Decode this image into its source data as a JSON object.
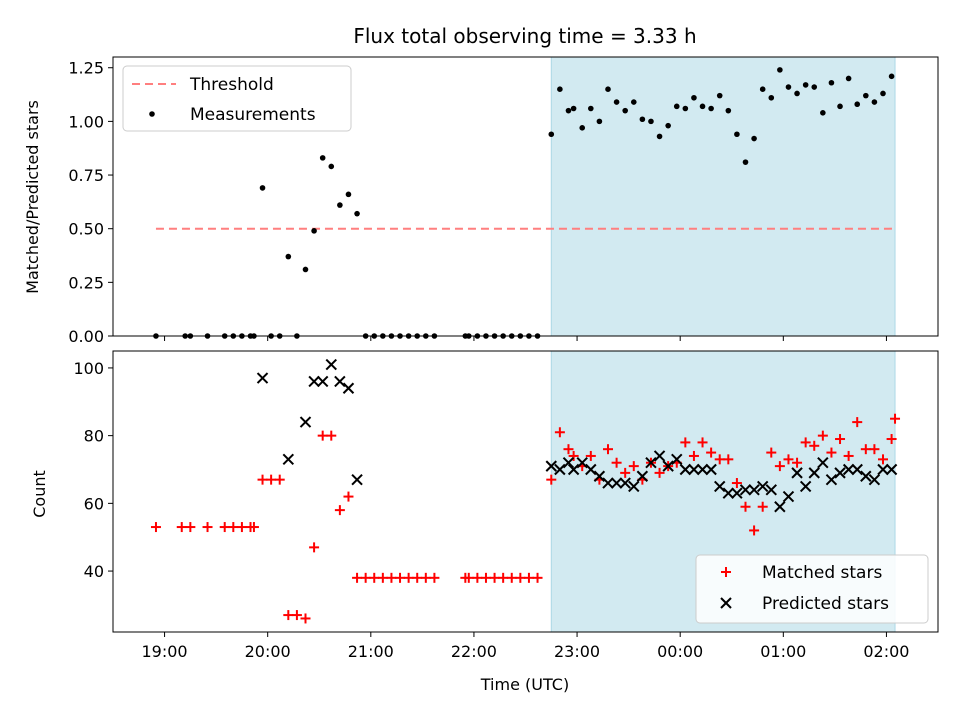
{
  "title": "Flux total observing time = 3.33 h",
  "colors": {
    "threshold": "#ff7f7f",
    "measurement": "#000000",
    "matched": "#ff0000",
    "predicted": "#000000",
    "shade": "#add8e6"
  },
  "chart_data": [
    {
      "type": "scatter",
      "panel": "top",
      "ylabel": "Matched/Predicted stars",
      "ylim": [
        0,
        1.3
      ],
      "yticks": [
        "0.00",
        "0.25",
        "0.50",
        "0.75",
        "1.00",
        "1.25"
      ],
      "shaded_region": [
        "22:45",
        "02:05"
      ],
      "legend": {
        "position": "upper-left",
        "entries": [
          "Threshold",
          "Measurements"
        ]
      },
      "threshold": {
        "name": "Threshold",
        "value": 0.5,
        "x_range": [
          "18:55",
          "02:05"
        ]
      },
      "measurements": {
        "name": "Measurements",
        "points": [
          [
            "18:55",
            0.0
          ],
          [
            "19:12",
            0.0
          ],
          [
            "19:15",
            0.0
          ],
          [
            "19:25",
            0.0
          ],
          [
            "19:35",
            0.0
          ],
          [
            "19:40",
            0.0
          ],
          [
            "19:45",
            0.0
          ],
          [
            "19:50",
            0.0
          ],
          [
            "19:52",
            0.0
          ],
          [
            "19:57",
            0.69
          ],
          [
            "20:02",
            0.0
          ],
          [
            "20:07",
            0.0
          ],
          [
            "20:12",
            0.37
          ],
          [
            "20:17",
            0.0
          ],
          [
            "20:22",
            0.31
          ],
          [
            "20:27",
            0.49
          ],
          [
            "20:32",
            0.83
          ],
          [
            "20:37",
            0.79
          ],
          [
            "20:42",
            0.61
          ],
          [
            "20:47",
            0.66
          ],
          [
            "20:52",
            0.57
          ],
          [
            "20:57",
            0.0
          ],
          [
            "21:02",
            0.0
          ],
          [
            "21:07",
            0.0
          ],
          [
            "21:12",
            0.0
          ],
          [
            "21:17",
            0.0
          ],
          [
            "21:22",
            0.0
          ],
          [
            "21:27",
            0.0
          ],
          [
            "21:32",
            0.0
          ],
          [
            "21:37",
            0.0
          ],
          [
            "21:55",
            0.0
          ],
          [
            "21:57",
            0.0
          ],
          [
            "22:02",
            0.0
          ],
          [
            "22:07",
            0.0
          ],
          [
            "22:12",
            0.0
          ],
          [
            "22:17",
            0.0
          ],
          [
            "22:22",
            0.0
          ],
          [
            "22:27",
            0.0
          ],
          [
            "22:32",
            0.0
          ],
          [
            "22:37",
            0.0
          ],
          [
            "22:45",
            0.94
          ],
          [
            "22:50",
            1.15
          ],
          [
            "22:55",
            1.05
          ],
          [
            "22:58",
            1.06
          ],
          [
            "23:03",
            0.97
          ],
          [
            "23:08",
            1.06
          ],
          [
            "23:13",
            1.0
          ],
          [
            "23:18",
            1.15
          ],
          [
            "23:23",
            1.09
          ],
          [
            "23:28",
            1.05
          ],
          [
            "23:33",
            1.09
          ],
          [
            "23:38",
            1.01
          ],
          [
            "23:43",
            1.0
          ],
          [
            "23:48",
            0.93
          ],
          [
            "23:53",
            0.98
          ],
          [
            "23:58",
            1.07
          ],
          [
            "00:03",
            1.06
          ],
          [
            "00:08",
            1.11
          ],
          [
            "00:13",
            1.07
          ],
          [
            "00:18",
            1.06
          ],
          [
            "00:23",
            1.12
          ],
          [
            "00:28",
            1.05
          ],
          [
            "00:33",
            0.94
          ],
          [
            "00:38",
            0.81
          ],
          [
            "00:43",
            0.92
          ],
          [
            "00:48",
            1.15
          ],
          [
            "00:53",
            1.11
          ],
          [
            "00:58",
            1.24
          ],
          [
            "01:03",
            1.16
          ],
          [
            "01:08",
            1.13
          ],
          [
            "01:13",
            1.17
          ],
          [
            "01:18",
            1.16
          ],
          [
            "01:23",
            1.04
          ],
          [
            "01:28",
            1.18
          ],
          [
            "01:33",
            1.07
          ],
          [
            "01:38",
            1.2
          ],
          [
            "01:43",
            1.08
          ],
          [
            "01:48",
            1.12
          ],
          [
            "01:53",
            1.09
          ],
          [
            "01:58",
            1.13
          ],
          [
            "02:03",
            1.21
          ]
        ]
      }
    },
    {
      "type": "scatter",
      "panel": "bottom",
      "ylabel": "Count",
      "xlabel": "Time (UTC)",
      "ylim": [
        22,
        105
      ],
      "yticks": [
        "40",
        "60",
        "80",
        "100"
      ],
      "xlim": [
        "18:30",
        "02:30"
      ],
      "xticks": [
        "19:00",
        "20:00",
        "21:00",
        "22:00",
        "23:00",
        "00:00",
        "01:00",
        "02:00"
      ],
      "shaded_region": [
        "22:45",
        "02:05"
      ],
      "legend": {
        "position": "lower-right",
        "entries": [
          "Matched stars",
          "Predicted stars"
        ]
      },
      "series": [
        {
          "name": "Matched stars",
          "marker": "+",
          "points": [
            [
              "18:55",
              53
            ],
            [
              "19:10",
              53
            ],
            [
              "19:15",
              53
            ],
            [
              "19:25",
              53
            ],
            [
              "19:35",
              53
            ],
            [
              "19:40",
              53
            ],
            [
              "19:45",
              53
            ],
            [
              "19:50",
              53
            ],
            [
              "19:52",
              53
            ],
            [
              "19:57",
              67
            ],
            [
              "20:02",
              67
            ],
            [
              "20:07",
              67
            ],
            [
              "20:12",
              27
            ],
            [
              "20:17",
              27
            ],
            [
              "20:22",
              26
            ],
            [
              "20:27",
              47
            ],
            [
              "20:32",
              80
            ],
            [
              "20:37",
              80
            ],
            [
              "20:42",
              58
            ],
            [
              "20:47",
              62
            ],
            [
              "20:52",
              38
            ],
            [
              "20:57",
              38
            ],
            [
              "21:02",
              38
            ],
            [
              "21:07",
              38
            ],
            [
              "21:12",
              38
            ],
            [
              "21:17",
              38
            ],
            [
              "21:22",
              38
            ],
            [
              "21:27",
              38
            ],
            [
              "21:32",
              38
            ],
            [
              "21:37",
              38
            ],
            [
              "21:55",
              38
            ],
            [
              "21:57",
              38
            ],
            [
              "22:02",
              38
            ],
            [
              "22:07",
              38
            ],
            [
              "22:12",
              38
            ],
            [
              "22:17",
              38
            ],
            [
              "22:22",
              38
            ],
            [
              "22:27",
              38
            ],
            [
              "22:32",
              38
            ],
            [
              "22:37",
              38
            ],
            [
              "22:45",
              67
            ],
            [
              "22:50",
              81
            ],
            [
              "22:55",
              76
            ],
            [
              "22:58",
              74
            ],
            [
              "23:03",
              71
            ],
            [
              "23:08",
              74
            ],
            [
              "23:13",
              67
            ],
            [
              "23:18",
              76
            ],
            [
              "23:23",
              72
            ],
            [
              "23:28",
              69
            ],
            [
              "23:33",
              71
            ],
            [
              "23:38",
              67
            ],
            [
              "23:43",
              72
            ],
            [
              "23:48",
              69
            ],
            [
              "23:53",
              71
            ],
            [
              "23:58",
              72
            ],
            [
              "00:03",
              78
            ],
            [
              "00:08",
              74
            ],
            [
              "00:13",
              78
            ],
            [
              "00:18",
              75
            ],
            [
              "00:23",
              73
            ],
            [
              "00:28",
              73
            ],
            [
              "00:33",
              66
            ],
            [
              "00:38",
              59
            ],
            [
              "00:43",
              52
            ],
            [
              "00:48",
              59
            ],
            [
              "00:53",
              75
            ],
            [
              "00:58",
              71
            ],
            [
              "01:03",
              73
            ],
            [
              "01:08",
              72
            ],
            [
              "01:13",
              78
            ],
            [
              "01:18",
              77
            ],
            [
              "01:23",
              80
            ],
            [
              "01:28",
              75
            ],
            [
              "01:33",
              79
            ],
            [
              "01:38",
              74
            ],
            [
              "01:43",
              84
            ],
            [
              "01:48",
              76
            ],
            [
              "01:53",
              76
            ],
            [
              "01:58",
              73
            ],
            [
              "02:03",
              79
            ],
            [
              "02:05",
              85
            ]
          ]
        },
        {
          "name": "Predicted stars",
          "marker": "x",
          "points": [
            [
              "19:57",
              97
            ],
            [
              "20:12",
              73
            ],
            [
              "20:22",
              84
            ],
            [
              "20:27",
              96
            ],
            [
              "20:32",
              96
            ],
            [
              "20:37",
              101
            ],
            [
              "20:42",
              96
            ],
            [
              "20:47",
              94
            ],
            [
              "20:52",
              67
            ],
            [
              "22:45",
              71
            ],
            [
              "22:50",
              70
            ],
            [
              "22:55",
              72
            ],
            [
              "22:58",
              70
            ],
            [
              "23:03",
              72
            ],
            [
              "23:08",
              70
            ],
            [
              "23:13",
              68
            ],
            [
              "23:18",
              66
            ],
            [
              "23:23",
              66
            ],
            [
              "23:28",
              66
            ],
            [
              "23:33",
              65
            ],
            [
              "23:38",
              68
            ],
            [
              "23:43",
              72
            ],
            [
              "23:48",
              74
            ],
            [
              "23:53",
              71
            ],
            [
              "23:58",
              73
            ],
            [
              "00:03",
              70
            ],
            [
              "00:08",
              70
            ],
            [
              "00:13",
              70
            ],
            [
              "00:18",
              70
            ],
            [
              "00:23",
              65
            ],
            [
              "00:28",
              63
            ],
            [
              "00:33",
              63
            ],
            [
              "00:38",
              64
            ],
            [
              "00:43",
              64
            ],
            [
              "00:48",
              65
            ],
            [
              "00:53",
              64
            ],
            [
              "00:58",
              59
            ],
            [
              "01:03",
              62
            ],
            [
              "01:08",
              69
            ],
            [
              "01:13",
              65
            ],
            [
              "01:18",
              69
            ],
            [
              "01:23",
              72
            ],
            [
              "01:28",
              67
            ],
            [
              "01:33",
              69
            ],
            [
              "01:38",
              70
            ],
            [
              "01:43",
              70
            ],
            [
              "01:48",
              68
            ],
            [
              "01:53",
              67
            ],
            [
              "01:58",
              70
            ],
            [
              "02:03",
              70
            ]
          ]
        }
      ]
    }
  ]
}
